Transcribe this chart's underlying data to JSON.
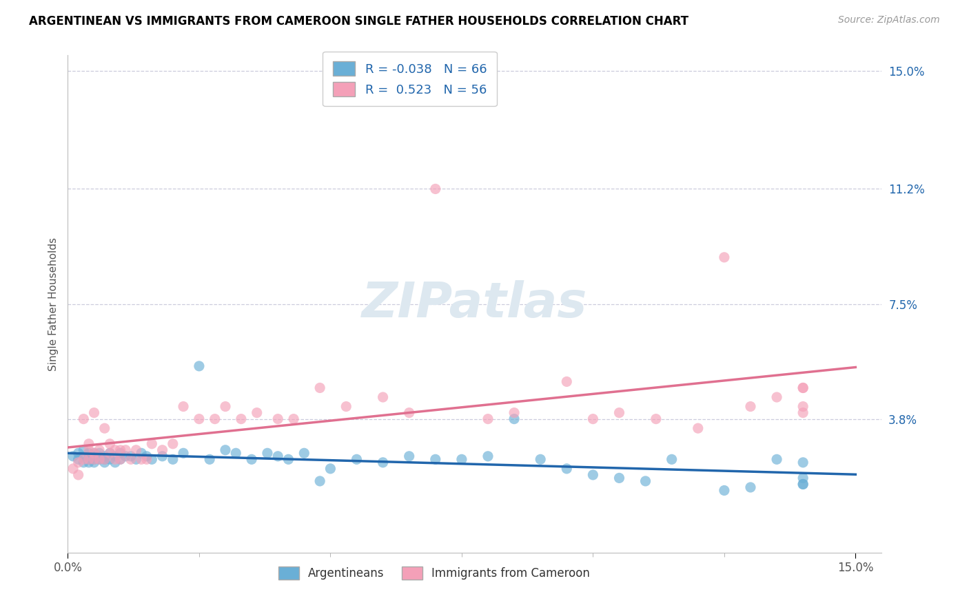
{
  "title": "ARGENTINEAN VS IMMIGRANTS FROM CAMEROON SINGLE FATHER HOUSEHOLDS CORRELATION CHART",
  "source": "Source: ZipAtlas.com",
  "ylabel": "Single Father Households",
  "xlim": [
    0.0,
    0.15
  ],
  "ylim": [
    -0.01,
    0.15
  ],
  "ytick_vals": [
    0.0,
    0.038,
    0.075,
    0.112,
    0.15
  ],
  "ytick_labels": [
    "",
    "3.8%",
    "7.5%",
    "11.2%",
    "15.0%"
  ],
  "xtick_vals": [
    0.0,
    0.15
  ],
  "xtick_labels": [
    "0.0%",
    "15.0%"
  ],
  "color_blue": "#6aafd6",
  "color_pink": "#f4a0b8",
  "color_blue_line": "#2166ac",
  "color_pink_line": "#e07090",
  "color_blue_text": "#2166ac",
  "R1": -0.038,
  "N1": 66,
  "R2": 0.523,
  "N2": 56,
  "watermark": "ZIPatlas",
  "blue_x": [
    0.001,
    0.002,
    0.002,
    0.003,
    0.003,
    0.003,
    0.004,
    0.004,
    0.004,
    0.004,
    0.005,
    0.005,
    0.005,
    0.005,
    0.006,
    0.006,
    0.006,
    0.007,
    0.007,
    0.007,
    0.008,
    0.008,
    0.009,
    0.009,
    0.01,
    0.01,
    0.011,
    0.012,
    0.013,
    0.014,
    0.015,
    0.016,
    0.018,
    0.02,
    0.022,
    0.025,
    0.027,
    0.03,
    0.032,
    0.035,
    0.038,
    0.04,
    0.042,
    0.045,
    0.048,
    0.05,
    0.055,
    0.06,
    0.065,
    0.07,
    0.075,
    0.08,
    0.085,
    0.09,
    0.095,
    0.1,
    0.105,
    0.11,
    0.115,
    0.125,
    0.13,
    0.135,
    0.14,
    0.14,
    0.14,
    0.14
  ],
  "blue_y": [
    0.026,
    0.025,
    0.027,
    0.026,
    0.024,
    0.028,
    0.025,
    0.026,
    0.027,
    0.024,
    0.025,
    0.026,
    0.027,
    0.024,
    0.025,
    0.026,
    0.027,
    0.025,
    0.026,
    0.024,
    0.025,
    0.027,
    0.024,
    0.026,
    0.025,
    0.027,
    0.026,
    0.026,
    0.025,
    0.027,
    0.026,
    0.025,
    0.026,
    0.025,
    0.027,
    0.055,
    0.025,
    0.028,
    0.027,
    0.025,
    0.027,
    0.026,
    0.025,
    0.027,
    0.018,
    0.022,
    0.025,
    0.024,
    0.026,
    0.025,
    0.025,
    0.026,
    0.038,
    0.025,
    0.022,
    0.02,
    0.019,
    0.018,
    0.025,
    0.015,
    0.016,
    0.025,
    0.017,
    0.024,
    0.017,
    0.019
  ],
  "pink_x": [
    0.001,
    0.002,
    0.002,
    0.003,
    0.003,
    0.004,
    0.004,
    0.004,
    0.005,
    0.005,
    0.005,
    0.006,
    0.006,
    0.007,
    0.007,
    0.008,
    0.008,
    0.009,
    0.009,
    0.01,
    0.01,
    0.011,
    0.012,
    0.013,
    0.014,
    0.015,
    0.016,
    0.018,
    0.02,
    0.022,
    0.025,
    0.028,
    0.03,
    0.033,
    0.036,
    0.04,
    0.043,
    0.048,
    0.053,
    0.06,
    0.065,
    0.07,
    0.08,
    0.085,
    0.095,
    0.1,
    0.105,
    0.112,
    0.12,
    0.125,
    0.13,
    0.135,
    0.14,
    0.14,
    0.14,
    0.14
  ],
  "pink_y": [
    0.022,
    0.024,
    0.02,
    0.038,
    0.025,
    0.03,
    0.025,
    0.028,
    0.04,
    0.025,
    0.027,
    0.028,
    0.025,
    0.035,
    0.025,
    0.03,
    0.027,
    0.028,
    0.025,
    0.028,
    0.025,
    0.028,
    0.025,
    0.028,
    0.025,
    0.025,
    0.03,
    0.028,
    0.03,
    0.042,
    0.038,
    0.038,
    0.042,
    0.038,
    0.04,
    0.038,
    0.038,
    0.048,
    0.042,
    0.045,
    0.04,
    0.112,
    0.038,
    0.04,
    0.05,
    0.038,
    0.04,
    0.038,
    0.035,
    0.09,
    0.042,
    0.045,
    0.048,
    0.04,
    0.042,
    0.048
  ]
}
